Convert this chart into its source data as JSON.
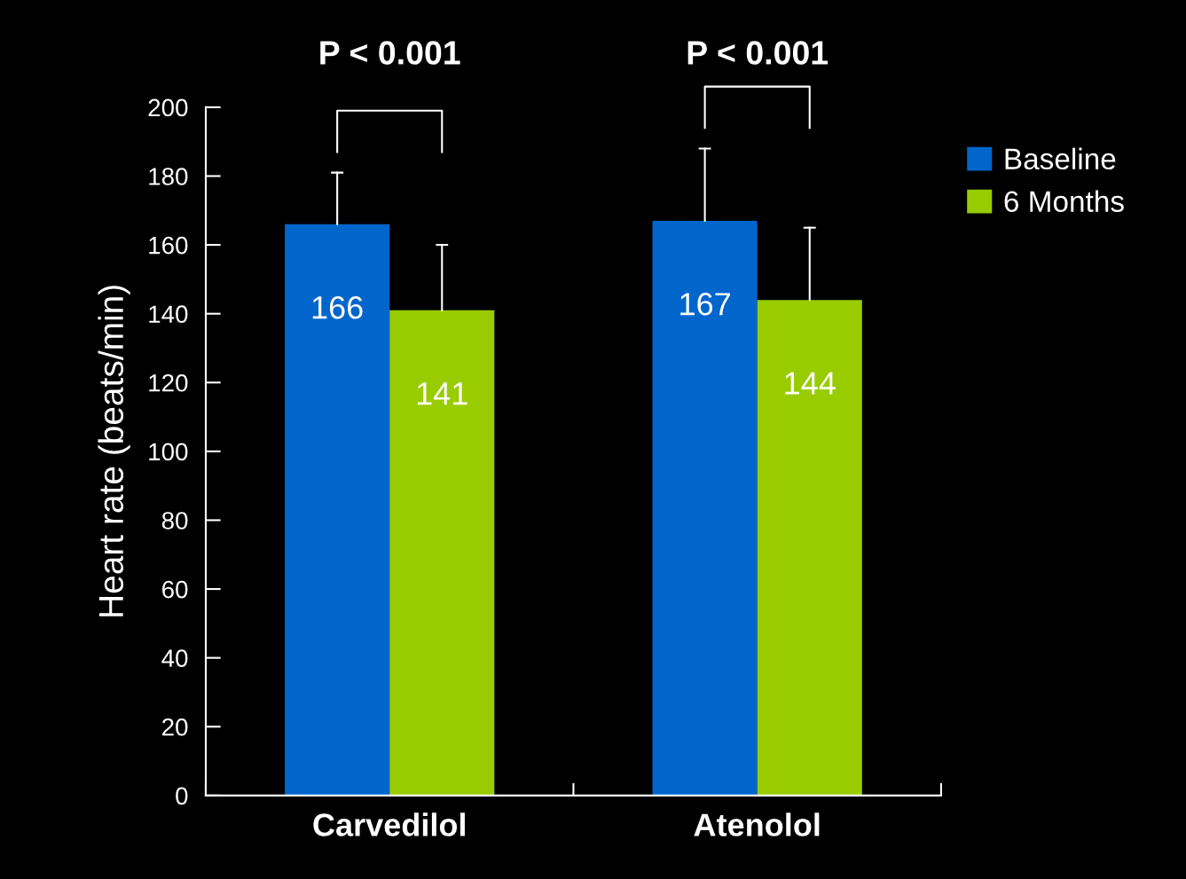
{
  "chart_data": {
    "type": "bar",
    "ylabel": "Heart rate (beats/min)",
    "categories": [
      "Carvedilol",
      "Atenolol"
    ],
    "series": [
      {
        "name": "Baseline",
        "color": "#0066cc",
        "values": [
          166,
          167
        ],
        "errors": [
          [
            166,
            181
          ],
          [
            167,
            188
          ]
        ]
      },
      {
        "name": "6 Months",
        "color": "#99cc00",
        "values": [
          141,
          144
        ],
        "errors": [
          [
            141,
            160
          ],
          [
            144,
            165
          ]
        ]
      }
    ],
    "ylim": [
      0,
      200
    ],
    "yticks": [
      0,
      20,
      40,
      60,
      80,
      100,
      120,
      140,
      160,
      180,
      200
    ],
    "data_labels": true,
    "grid": false,
    "legend": "top right",
    "annotations": [
      "P < 0.001",
      "P < 0.001"
    ]
  }
}
